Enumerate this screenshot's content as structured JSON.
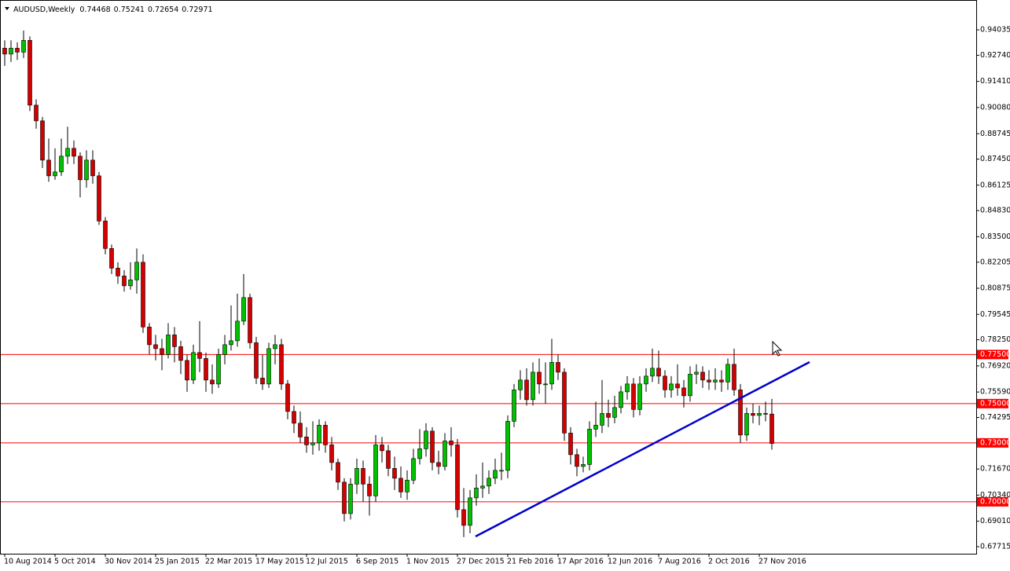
{
  "chart_data": {
    "type": "candlestick",
    "symbol": "AUDUSD,Weekly",
    "categories": [
      "10 Aug 2014",
      null,
      null,
      null,
      null,
      null,
      null,
      null,
      "5 Oct 2014",
      null,
      null,
      null,
      null,
      null,
      null,
      null,
      "30 Nov 2014",
      null,
      null,
      null,
      null,
      null,
      null,
      null,
      "25 Jan 2015",
      null,
      null,
      null,
      null,
      null,
      null,
      null,
      "22 Mar 2015",
      null,
      null,
      null,
      null,
      null,
      null,
      null,
      "17 May 2015",
      null,
      null,
      null,
      null,
      null,
      null,
      null,
      "12 Jul 2015",
      null,
      null,
      null,
      null,
      null,
      null,
      null,
      "6 Sep 2015",
      null,
      null,
      null,
      null,
      null,
      null,
      null,
      "1 Nov 2015",
      null,
      null,
      null,
      null,
      null,
      null,
      null,
      "27 Dec 2015",
      null,
      null,
      null,
      null,
      null,
      null,
      null,
      "21 Feb 2016",
      null,
      null,
      null,
      null,
      null,
      null,
      null,
      "17 Apr 2016",
      null,
      null,
      null,
      null,
      null,
      null,
      null,
      "12 Jun 2016",
      null,
      null,
      null,
      null,
      null,
      null,
      null,
      "7 Aug 2016",
      null,
      null,
      null,
      null,
      null,
      null,
      null,
      "2 Oct 2016",
      null,
      null,
      null,
      null,
      null,
      null,
      null,
      "27 Nov 2016",
      null,
      null
    ],
    "open": [
      0.931,
      0.928,
      0.931,
      0.929,
      0.935,
      0.902,
      0.894,
      0.874,
      0.866,
      0.868,
      0.876,
      0.88,
      0.876,
      0.864,
      0.874,
      0.866,
      0.843,
      0.829,
      0.819,
      0.815,
      0.81,
      0.813,
      0.822,
      0.789,
      0.78,
      0.778,
      0.775,
      0.785,
      0.779,
      0.772,
      0.762,
      0.776,
      0.773,
      0.762,
      0.76,
      0.775,
      0.78,
      0.782,
      0.792,
      0.804,
      0.781,
      0.763,
      0.76,
      0.778,
      0.78,
      0.76,
      0.746,
      0.74,
      0.733,
      0.729,
      0.73,
      0.739,
      0.729,
      0.72,
      0.71,
      0.694,
      0.709,
      0.717,
      0.709,
      0.703,
      0.729,
      0.726,
      0.717,
      0.712,
      0.705,
      0.711,
      0.722,
      0.727,
      0.736,
      0.72,
      0.718,
      0.731,
      0.729,
      0.696,
      0.688,
      0.702,
      0.707,
      0.708,
      0.712,
      0.716,
      0.716,
      0.741,
      0.757,
      0.762,
      0.752,
      0.766,
      0.76,
      0.76,
      0.771,
      0.766,
      0.735,
      0.724,
      0.718,
      0.719,
      0.737,
      0.739,
      0.745,
      0.743,
      0.748,
      0.756,
      0.76,
      0.747,
      0.76,
      0.764,
      0.768,
      0.764,
      0.757,
      0.76,
      0.758,
      0.754,
      0.765,
      0.766,
      0.762,
      0.761,
      0.762,
      0.761,
      0.77,
      0.757,
      0.734,
      0.745,
      0.744,
      0.745,
      0.74468
    ],
    "high": [
      0.935,
      0.935,
      0.934,
      0.94,
      0.937,
      0.905,
      0.896,
      0.885,
      0.88,
      0.885,
      0.891,
      0.884,
      0.878,
      0.879,
      0.879,
      0.868,
      0.845,
      0.831,
      0.822,
      0.818,
      0.822,
      0.829,
      0.826,
      0.791,
      0.785,
      0.783,
      0.791,
      0.789,
      0.782,
      0.775,
      0.78,
      0.792,
      0.776,
      0.77,
      0.778,
      0.785,
      0.8,
      0.806,
      0.816,
      0.806,
      0.784,
      0.775,
      0.781,
      0.785,
      0.783,
      0.762,
      0.749,
      0.746,
      0.738,
      0.741,
      0.742,
      0.741,
      0.733,
      0.722,
      0.712,
      0.712,
      0.722,
      0.721,
      0.713,
      0.734,
      0.733,
      0.729,
      0.723,
      0.718,
      0.716,
      0.727,
      0.737,
      0.74,
      0.738,
      0.726,
      0.735,
      0.738,
      0.732,
      0.707,
      0.706,
      0.714,
      0.72,
      0.716,
      0.722,
      0.725,
      0.744,
      0.76,
      0.767,
      0.768,
      0.771,
      0.773,
      0.771,
      0.783,
      0.775,
      0.768,
      0.738,
      0.727,
      0.723,
      0.741,
      0.751,
      0.762,
      0.752,
      0.754,
      0.759,
      0.764,
      0.763,
      0.764,
      0.768,
      0.778,
      0.777,
      0.767,
      0.764,
      0.77,
      0.762,
      0.769,
      0.77,
      0.769,
      0.767,
      0.768,
      0.767,
      0.773,
      0.778,
      0.76,
      0.748,
      0.75,
      0.749,
      0.751,
      0.75241
    ],
    "low": [
      0.922,
      0.924,
      0.925,
      0.926,
      0.899,
      0.89,
      0.87,
      0.863,
      0.864,
      0.866,
      0.872,
      0.872,
      0.855,
      0.86,
      0.862,
      0.841,
      0.826,
      0.816,
      0.811,
      0.807,
      0.808,
      0.806,
      0.786,
      0.775,
      0.772,
      0.767,
      0.773,
      0.771,
      0.765,
      0.756,
      0.76,
      0.766,
      0.756,
      0.755,
      0.758,
      0.77,
      0.777,
      0.779,
      0.79,
      0.778,
      0.76,
      0.757,
      0.758,
      0.77,
      0.757,
      0.742,
      0.735,
      0.73,
      0.725,
      0.724,
      0.726,
      0.725,
      0.716,
      0.706,
      0.69,
      0.691,
      0.704,
      0.7,
      0.693,
      0.7,
      0.72,
      0.713,
      0.706,
      0.702,
      0.701,
      0.709,
      0.719,
      0.723,
      0.716,
      0.714,
      0.716,
      0.723,
      0.692,
      0.682,
      0.684,
      0.698,
      0.702,
      0.704,
      0.709,
      0.711,
      0.712,
      0.738,
      0.752,
      0.749,
      0.749,
      0.755,
      0.75,
      0.757,
      0.762,
      0.731,
      0.719,
      0.713,
      0.715,
      0.716,
      0.733,
      0.735,
      0.738,
      0.74,
      0.745,
      0.752,
      0.743,
      0.744,
      0.756,
      0.761,
      0.76,
      0.753,
      0.753,
      0.754,
      0.748,
      0.751,
      0.76,
      0.758,
      0.757,
      0.757,
      0.756,
      0.757,
      0.754,
      0.73,
      0.731,
      0.74,
      0.739,
      0.741,
      0.72654
    ],
    "close": [
      0.928,
      0.931,
      0.929,
      0.935,
      0.902,
      0.894,
      0.874,
      0.866,
      0.868,
      0.876,
      0.88,
      0.876,
      0.864,
      0.874,
      0.866,
      0.843,
      0.829,
      0.819,
      0.815,
      0.81,
      0.813,
      0.822,
      0.789,
      0.78,
      0.778,
      0.775,
      0.785,
      0.779,
      0.772,
      0.762,
      0.776,
      0.773,
      0.762,
      0.76,
      0.775,
      0.78,
      0.782,
      0.792,
      0.804,
      0.781,
      0.763,
      0.76,
      0.778,
      0.78,
      0.76,
      0.746,
      0.74,
      0.733,
      0.729,
      0.73,
      0.739,
      0.729,
      0.72,
      0.71,
      0.694,
      0.709,
      0.717,
      0.709,
      0.703,
      0.729,
      0.726,
      0.717,
      0.712,
      0.705,
      0.711,
      0.722,
      0.727,
      0.736,
      0.72,
      0.718,
      0.731,
      0.729,
      0.696,
      0.688,
      0.702,
      0.707,
      0.708,
      0.712,
      0.716,
      0.716,
      0.741,
      0.757,
      0.762,
      0.752,
      0.766,
      0.76,
      0.76,
      0.771,
      0.766,
      0.735,
      0.724,
      0.718,
      0.719,
      0.737,
      0.739,
      0.745,
      0.743,
      0.748,
      0.756,
      0.76,
      0.747,
      0.76,
      0.764,
      0.768,
      0.764,
      0.757,
      0.76,
      0.758,
      0.754,
      0.765,
      0.766,
      0.762,
      0.761,
      0.762,
      0.761,
      0.77,
      0.757,
      0.734,
      0.745,
      0.744,
      0.745,
      0.7447,
      0.72971
    ],
    "up_color": "#00c000",
    "down_color": "#d40000",
    "ylim": [
      0.67355,
      0.95555
    ],
    "yticks": [
      0.94035,
      {
        "value": 0.9274,
        "label": "0.92740"
      },
      {
        "value": 0.9141,
        "label": "0.91410"
      },
      {
        "value": 0.9008,
        "label": "0.90080"
      },
      0.88745,
      {
        "value": 0.8745,
        "label": "0.87450"
      },
      0.86125,
      {
        "value": 0.8483,
        "label": "0.84830"
      },
      {
        "value": 0.835,
        "label": "0.83500"
      },
      0.82205,
      0.80875,
      0.79545,
      {
        "value": 0.7825,
        "label": "0.78250"
      },
      {
        "value": 0.7692,
        "label": "0.76920"
      },
      {
        "value": 0.7559,
        "label": "0.75590"
      },
      0.74295,
      {
        "value": 0.7167,
        "label": "0.71670"
      },
      {
        "value": 0.7034,
        "label": "0.70340"
      },
      {
        "value": 0.6901,
        "label": "0.69010"
      },
      0.67715
    ],
    "hlines": [
      {
        "value": 0.775,
        "label": "0.77500"
      },
      {
        "value": 0.75,
        "label": "0.75000"
      },
      {
        "value": 0.73,
        "label": "0.73000"
      },
      {
        "value": 0.7,
        "label": "0.70000"
      }
    ],
    "hline_color": "#ff0000",
    "grid": false
  }
}
